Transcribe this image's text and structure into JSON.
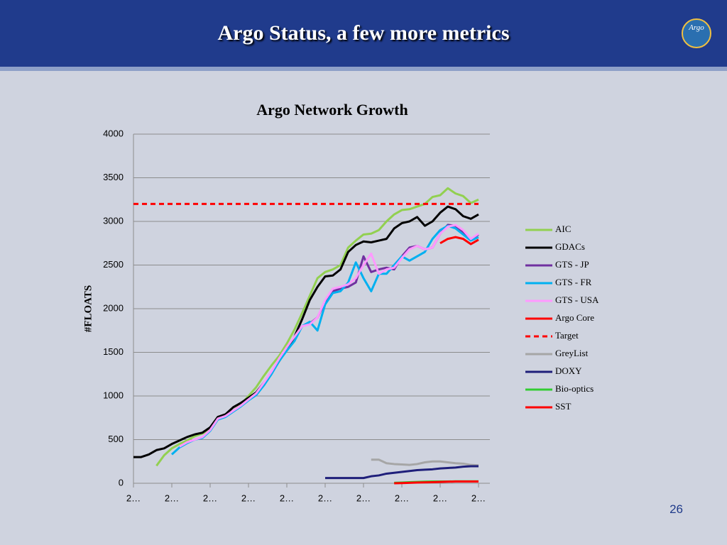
{
  "header": {
    "title": "Argo Status, a few more metrics",
    "logo": "Argo"
  },
  "page_number": "26",
  "chart_data": {
    "type": "line",
    "title": "Argo Network Growth",
    "y_label": "#FLOATS",
    "categories": [
      "2…",
      null,
      null,
      null,
      null,
      "2…",
      null,
      null,
      null,
      null,
      "2…",
      null,
      null,
      null,
      null,
      "2…",
      null,
      null,
      null,
      null,
      "2…",
      null,
      null,
      null,
      null,
      "2…",
      null,
      null,
      null,
      null,
      "2…",
      null,
      null,
      null,
      null,
      "2…",
      null,
      null,
      null,
      null,
      "2…",
      null,
      null,
      null,
      null,
      "2…"
    ],
    "ylim": [
      0,
      4000
    ],
    "yticks": [
      0,
      500,
      1000,
      1500,
      2000,
      2500,
      3000,
      3500,
      4000
    ],
    "grid": true,
    "legend": "right",
    "series": [
      {
        "name": "AIC",
        "color": "#92d050",
        "values": [
          null,
          null,
          null,
          200,
          320,
          400,
          450,
          490,
          540,
          570,
          620,
          730,
          780,
          830,
          900,
          1000,
          1100,
          1230,
          1350,
          1460,
          1600,
          1760,
          1950,
          2150,
          2350,
          2420,
          2450,
          2500,
          2700,
          2780,
          2850,
          2860,
          2900,
          3000,
          3080,
          3130,
          3140,
          3170,
          3200,
          3280,
          3300,
          3380,
          3320,
          3290,
          3210,
          3250
        ]
      },
      {
        "name": "GDACs",
        "color": "#000000",
        "values": [
          300,
          300,
          330,
          380,
          400,
          450,
          490,
          530,
          560,
          580,
          640,
          760,
          790,
          870,
          920,
          980,
          1040,
          1150,
          1260,
          1400,
          1530,
          1680,
          1880,
          2100,
          2250,
          2370,
          2380,
          2450,
          2650,
          2730,
          2770,
          2760,
          2780,
          2800,
          2920,
          2980,
          3000,
          3050,
          2950,
          3000,
          3100,
          3170,
          3140,
          3060,
          3030,
          3080
        ]
      },
      {
        "name": "GTS - JP",
        "color": "#7030a0",
        "values": [
          null,
          null,
          null,
          null,
          null,
          null,
          null,
          null,
          null,
          null,
          null,
          null,
          null,
          null,
          null,
          null,
          null,
          null,
          null,
          null,
          null,
          null,
          1800,
          1830,
          1900,
          2080,
          2200,
          2230,
          2250,
          2300,
          2600,
          2420,
          2450,
          2470,
          2450,
          2600,
          2700,
          2720,
          2680,
          2700,
          2860,
          2960,
          2950,
          2880,
          2800,
          2850
        ]
      },
      {
        "name": "GTS - FR",
        "color": "#00b0f0",
        "values": [
          null,
          null,
          null,
          null,
          null,
          330,
          410,
          460,
          500,
          520,
          600,
          730,
          760,
          820,
          880,
          950,
          1010,
          1120,
          1250,
          1400,
          1520,
          1630,
          1800,
          1850,
          1750,
          2050,
          2180,
          2200,
          2300,
          2530,
          2350,
          2200,
          2400,
          2400,
          2500,
          2600,
          2550,
          2600,
          2650,
          2800,
          2900,
          2950,
          2920,
          2850,
          2780,
          2820
        ]
      },
      {
        "name": "GTS - USA",
        "color": "#ff99ff",
        "values": [
          null,
          null,
          null,
          null,
          null,
          null,
          420,
          470,
          500,
          530,
          610,
          740,
          770,
          830,
          890,
          960,
          1030,
          1150,
          1280,
          1430,
          1560,
          1680,
          1800,
          1820,
          1900,
          2100,
          2230,
          2250,
          2280,
          2350,
          2500,
          2630,
          2400,
          2450,
          2470,
          2580,
          2680,
          2720,
          2680,
          2700,
          2860,
          2940,
          2960,
          2900,
          2800,
          2860
        ]
      },
      {
        "name": "Argo Core",
        "color": "#ff0000",
        "values": [
          null,
          null,
          null,
          null,
          null,
          null,
          null,
          null,
          null,
          null,
          null,
          null,
          null,
          null,
          null,
          null,
          null,
          null,
          null,
          null,
          null,
          null,
          null,
          null,
          null,
          null,
          null,
          null,
          null,
          null,
          null,
          null,
          null,
          null,
          null,
          null,
          null,
          null,
          null,
          null,
          2750,
          2800,
          2820,
          2800,
          2740,
          2790
        ]
      },
      {
        "name": "Target",
        "color": "#ff0000",
        "style": "dashed",
        "values": [
          3200,
          3200,
          3200,
          3200,
          3200,
          3200,
          3200,
          3200,
          3200,
          3200,
          3200,
          3200,
          3200,
          3200,
          3200,
          3200,
          3200,
          3200,
          3200,
          3200,
          3200,
          3200,
          3200,
          3200,
          3200,
          3200,
          3200,
          3200,
          3200,
          3200,
          3200,
          3200,
          3200,
          3200,
          3200,
          3200,
          3200,
          3200,
          3200,
          3200,
          3200,
          3200,
          3200,
          3200,
          3200,
          3200
        ]
      },
      {
        "name": "GreyList",
        "color": "#a6a6a6",
        "values": [
          null,
          null,
          null,
          null,
          null,
          null,
          null,
          null,
          null,
          null,
          null,
          null,
          null,
          null,
          null,
          null,
          null,
          null,
          null,
          null,
          null,
          null,
          null,
          null,
          null,
          null,
          null,
          null,
          null,
          null,
          null,
          270,
          270,
          230,
          220,
          215,
          210,
          220,
          240,
          250,
          250,
          240,
          230,
          225,
          210,
          205
        ]
      },
      {
        "name": "DOXY",
        "color": "#1f1f7a",
        "values": [
          null,
          null,
          null,
          null,
          null,
          null,
          null,
          null,
          null,
          null,
          null,
          null,
          null,
          null,
          null,
          null,
          null,
          null,
          null,
          null,
          null,
          null,
          null,
          null,
          null,
          60,
          60,
          60,
          60,
          60,
          60,
          80,
          90,
          110,
          120,
          130,
          140,
          150,
          155,
          160,
          170,
          175,
          180,
          190,
          195,
          195
        ]
      },
      {
        "name": "Bio-optics",
        "color": "#33cc33",
        "values": [
          null,
          null,
          null,
          null,
          null,
          null,
          null,
          null,
          null,
          null,
          null,
          null,
          null,
          null,
          null,
          null,
          null,
          null,
          null,
          null,
          null,
          null,
          null,
          null,
          null,
          null,
          null,
          null,
          null,
          null,
          null,
          null,
          null,
          null,
          5,
          8,
          12,
          15,
          18,
          20,
          20,
          20,
          22,
          22,
          22,
          22
        ]
      },
      {
        "name": "SST",
        "color": "#ff0000",
        "values": [
          null,
          null,
          null,
          null,
          null,
          null,
          null,
          null,
          null,
          null,
          null,
          null,
          null,
          null,
          null,
          null,
          null,
          null,
          null,
          null,
          null,
          null,
          null,
          null,
          null,
          null,
          null,
          null,
          null,
          null,
          null,
          null,
          null,
          null,
          0,
          2,
          5,
          8,
          10,
          12,
          15,
          18,
          20,
          20,
          20,
          20
        ]
      }
    ]
  }
}
